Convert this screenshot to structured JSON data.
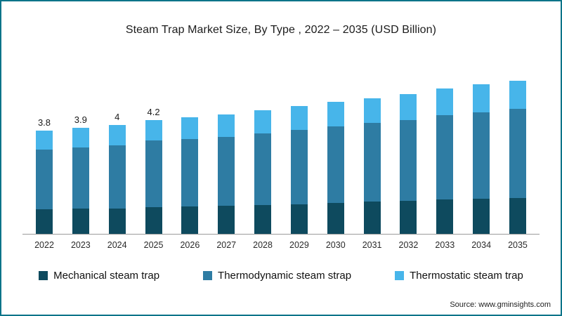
{
  "title": "Steam Trap Market Size, By Type , 2022 – 2035 (USD Billion)",
  "source": "Source: www.gminsights.com",
  "colors": {
    "mechanical": "#0e4a5e",
    "thermodynamic": "#2e7ca3",
    "thermostatic": "#47b5ea",
    "frame_border": "#0c7489",
    "axis": "#9b9b9b"
  },
  "legend": [
    {
      "label": "Mechanical steam trap",
      "color": "#0e4a5e"
    },
    {
      "label": "Thermodynamic steam strap",
      "color": "#2e7ca3"
    },
    {
      "label": "Thermostatic steam trap",
      "color": "#47b5ea"
    }
  ],
  "chart_data": {
    "type": "bar",
    "stacked": true,
    "title": "Steam Trap Market Size, By Type , 2022 – 2035 (USD Billion)",
    "xlabel": "",
    "ylabel": "USD Billion",
    "ylim": [
      0,
      6
    ],
    "grid": false,
    "legend_position": "bottom",
    "categories": [
      "2022",
      "2023",
      "2024",
      "2025",
      "2026",
      "2027",
      "2028",
      "2029",
      "2030",
      "2031",
      "2032",
      "2033",
      "2034",
      "2035"
    ],
    "series": [
      {
        "name": "Mechanical steam trap",
        "color": "#0e4a5e",
        "values": [
          0.9,
          0.92,
          0.94,
          0.99,
          1.01,
          1.04,
          1.07,
          1.1,
          1.14,
          1.18,
          1.21,
          1.26,
          1.29,
          1.33
        ]
      },
      {
        "name": "Thermodynamic steam strap",
        "color": "#2e7ca3",
        "values": [
          2.2,
          2.26,
          2.32,
          2.44,
          2.49,
          2.54,
          2.64,
          2.73,
          2.81,
          2.9,
          2.99,
          3.1,
          3.19,
          3.28
        ]
      },
      {
        "name": "Thermostatic steam trap",
        "color": "#47b5ea",
        "values": [
          0.7,
          0.72,
          0.74,
          0.77,
          0.8,
          0.82,
          0.84,
          0.87,
          0.9,
          0.92,
          0.95,
          0.99,
          1.02,
          1.04
        ]
      }
    ],
    "totals": [
      3.8,
      3.9,
      4.0,
      4.2,
      4.3,
      4.4,
      4.55,
      4.7,
      4.85,
      5.0,
      5.15,
      5.35,
      5.5,
      5.65
    ],
    "bar_labels": [
      "3.8",
      "3.9",
      "4",
      "4.2",
      "",
      "",
      "",
      "",
      "",
      "",
      "",
      "",
      "",
      ""
    ]
  }
}
